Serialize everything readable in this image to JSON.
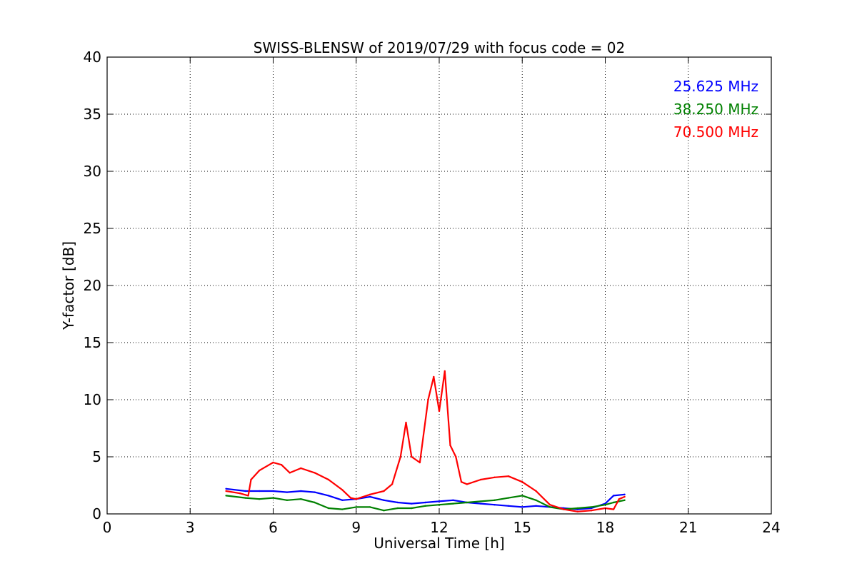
{
  "chart_data": {
    "type": "line",
    "title": "SWISS-BLENSW of 2019/07/29 with focus code = 02",
    "xlabel": "Universal Time [h]",
    "ylabel": "Y-factor [dB]",
    "xlim": [
      0,
      24
    ],
    "ylim": [
      0,
      40
    ],
    "xticks": [
      0,
      3,
      6,
      9,
      12,
      15,
      18,
      21,
      24
    ],
    "yticks": [
      0,
      5,
      10,
      15,
      20,
      25,
      30,
      35,
      40
    ],
    "grid": true,
    "legend_placement": "top-right",
    "series": [
      {
        "name": "25.625 MHz",
        "color": "#0000ff",
        "x": [
          4.3,
          5.0,
          5.5,
          6.0,
          6.5,
          7.0,
          7.5,
          8.0,
          8.5,
          9.0,
          9.5,
          10.0,
          10.5,
          11.0,
          11.5,
          12.0,
          12.5,
          13.0,
          13.5,
          14.0,
          14.5,
          15.0,
          15.5,
          16.0,
          16.5,
          17.0,
          17.5,
          18.0,
          18.3,
          18.7
        ],
        "y": [
          2.2,
          2.0,
          2.0,
          2.0,
          1.9,
          2.0,
          1.9,
          1.6,
          1.2,
          1.3,
          1.5,
          1.2,
          1.0,
          0.9,
          1.0,
          1.1,
          1.2,
          1.0,
          0.9,
          0.8,
          0.7,
          0.6,
          0.7,
          0.6,
          0.5,
          0.4,
          0.5,
          0.9,
          1.6,
          1.7
        ]
      },
      {
        "name": "38.250 MHz",
        "color": "#008000",
        "x": [
          4.3,
          5.0,
          5.5,
          6.0,
          6.5,
          7.0,
          7.5,
          8.0,
          8.5,
          9.0,
          9.5,
          10.0,
          10.5,
          11.0,
          11.5,
          12.0,
          12.5,
          13.0,
          13.5,
          14.0,
          14.5,
          15.0,
          15.5,
          16.0,
          16.5,
          17.0,
          17.5,
          18.0,
          18.3,
          18.7
        ],
        "y": [
          1.6,
          1.4,
          1.3,
          1.4,
          1.2,
          1.3,
          1.0,
          0.5,
          0.4,
          0.6,
          0.6,
          0.3,
          0.5,
          0.5,
          0.7,
          0.8,
          0.9,
          1.0,
          1.1,
          1.2,
          1.4,
          1.6,
          1.2,
          0.6,
          0.4,
          0.5,
          0.6,
          0.8,
          1.0,
          1.2
        ]
      },
      {
        "name": "70.500 MHz",
        "color": "#ff0000",
        "x": [
          4.3,
          4.8,
          5.1,
          5.2,
          5.5,
          6.0,
          6.3,
          6.6,
          7.0,
          7.5,
          8.0,
          8.5,
          8.8,
          9.0,
          9.5,
          10.0,
          10.3,
          10.6,
          10.8,
          11.0,
          11.3,
          11.6,
          11.8,
          12.0,
          12.2,
          12.4,
          12.6,
          12.8,
          13.0,
          13.5,
          14.0,
          14.5,
          15.0,
          15.5,
          16.0,
          16.5,
          17.0,
          17.5,
          18.0,
          18.3,
          18.5,
          18.7
        ],
        "y": [
          2.0,
          1.8,
          1.6,
          3.0,
          3.8,
          4.5,
          4.3,
          3.6,
          4.0,
          3.6,
          3.0,
          2.1,
          1.4,
          1.3,
          1.7,
          2.0,
          2.6,
          5.0,
          8.0,
          5.0,
          4.5,
          10.0,
          12.0,
          9.0,
          12.5,
          6.0,
          5.0,
          2.8,
          2.6,
          3.0,
          3.2,
          3.3,
          2.8,
          2.0,
          0.8,
          0.4,
          0.2,
          0.3,
          0.5,
          0.4,
          1.3,
          1.5
        ]
      }
    ]
  }
}
